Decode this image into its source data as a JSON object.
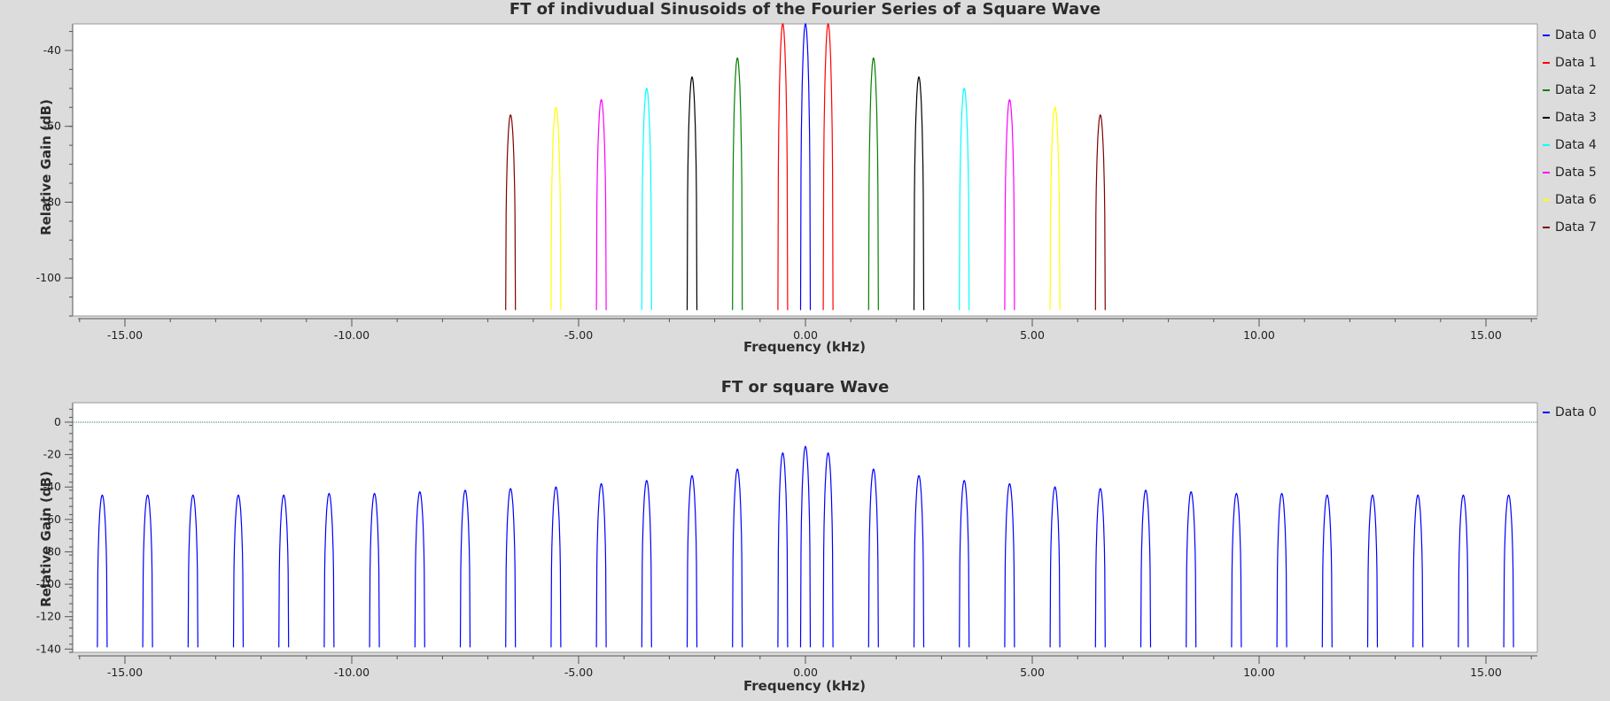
{
  "chart_data": [
    {
      "type": "line",
      "title": "FT of indivudual Sinusoids of the Fourier Series of a Square Wave",
      "xlabel": "Frequency (kHz)",
      "ylabel": "Relative Gain (dB)",
      "xlim": [
        -16.0,
        16.0
      ],
      "ylim": [
        -110,
        -33
      ],
      "x_ticks": [
        -15,
        -10,
        -5,
        0,
        5,
        10,
        15
      ],
      "x_tick_labels": [
        "-15.00",
        "-10.00",
        "-5.00",
        "0.00",
        "5.00",
        "10.00",
        "15.00"
      ],
      "y_ticks": [
        -100,
        -80,
        -60,
        -40
      ],
      "y_tick_labels": [
        "-100",
        "-80",
        "-60",
        "-40"
      ],
      "grid": false,
      "legend_position": "right",
      "series": [
        {
          "name": "Data 0",
          "color": "#0000ff",
          "peaks_khz": [
            0.0
          ],
          "peak_db": [
            -33
          ]
        },
        {
          "name": "Data 1",
          "color": "#ff0000",
          "peaks_khz": [
            -0.5,
            0.5
          ],
          "peak_db": [
            -33,
            -33
          ]
        },
        {
          "name": "Data 2",
          "color": "#008000",
          "peaks_khz": [
            -1.5,
            1.5
          ],
          "peak_db": [
            -42,
            -42
          ]
        },
        {
          "name": "Data 3",
          "color": "#000000",
          "peaks_khz": [
            -2.5,
            2.5
          ],
          "peak_db": [
            -47,
            -47
          ]
        },
        {
          "name": "Data 4",
          "color": "#00ffff",
          "peaks_khz": [
            -3.5,
            3.5
          ],
          "peak_db": [
            -50,
            -50
          ]
        },
        {
          "name": "Data 5",
          "color": "#ff00ff",
          "peaks_khz": [
            -4.5,
            4.5
          ],
          "peak_db": [
            -53,
            -53
          ]
        },
        {
          "name": "Data 6",
          "color": "#ffff00",
          "peaks_khz": [
            -5.5,
            5.5
          ],
          "peak_db": [
            -55,
            -55
          ]
        },
        {
          "name": "Data 7",
          "color": "#800000",
          "peaks_khz": [
            -6.5,
            6.5
          ],
          "peak_db": [
            -57,
            -57
          ]
        }
      ]
    },
    {
      "type": "line",
      "title": "FT or square Wave",
      "xlabel": "Frequency (kHz)",
      "ylabel": "Relative Gain (dB)",
      "xlim": [
        -16.0,
        16.0
      ],
      "ylim": [
        -142,
        12
      ],
      "x_ticks": [
        -15,
        -10,
        -5,
        0,
        5,
        10,
        15
      ],
      "x_tick_labels": [
        "-15.00",
        "-10.00",
        "-5.00",
        "0.00",
        "5.00",
        "10.00",
        "15.00"
      ],
      "y_ticks": [
        -140,
        -120,
        -100,
        -80,
        -60,
        -40,
        -20,
        0
      ],
      "y_tick_labels": [
        "-140",
        "-120",
        "-100",
        "-80",
        "-60",
        "-40",
        "-20",
        "0"
      ],
      "grid": false,
      "legend_position": "right",
      "reference_line_db": 0,
      "series": [
        {
          "name": "Data 0",
          "color": "#0000ff",
          "peaks_khz": [
            -15.5,
            -14.5,
            -13.5,
            -12.5,
            -11.5,
            -10.5,
            -9.5,
            -8.5,
            -7.5,
            -6.5,
            -5.5,
            -4.5,
            -3.5,
            -2.5,
            -1.5,
            -0.5,
            0.0,
            0.5,
            1.5,
            2.5,
            3.5,
            4.5,
            5.5,
            6.5,
            7.5,
            8.5,
            9.5,
            10.5,
            11.5,
            12.5,
            13.5,
            14.5,
            15.5
          ],
          "peak_db": [
            -45,
            -45,
            -45,
            -45,
            -45,
            -44,
            -44,
            -43,
            -42,
            -41,
            -40,
            -38,
            -36,
            -33,
            -29,
            -19,
            -15,
            -19,
            -29,
            -33,
            -36,
            -38,
            -40,
            -41,
            -42,
            -43,
            -44,
            -44,
            -45,
            -45,
            -45,
            -45,
            -45
          ]
        }
      ]
    }
  ]
}
